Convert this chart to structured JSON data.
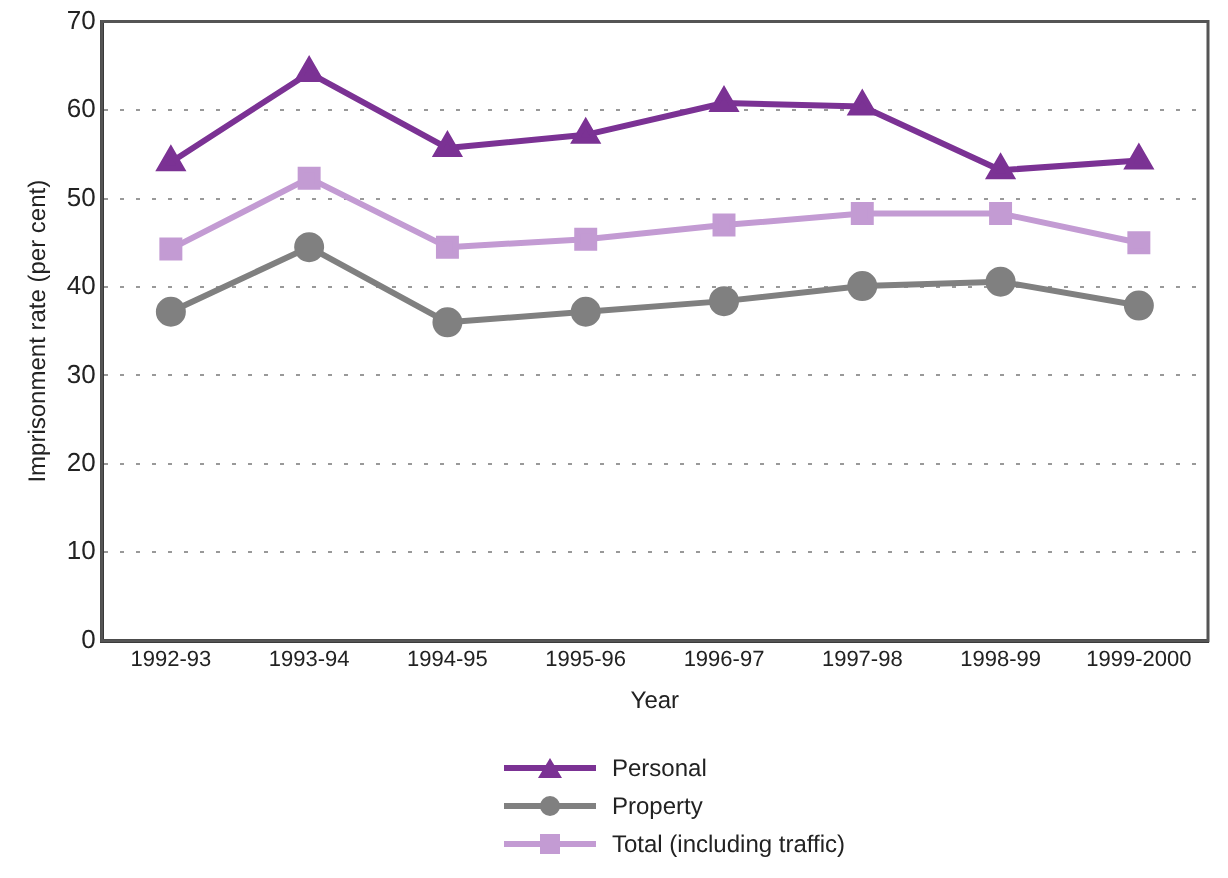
{
  "chart_data": {
    "type": "line",
    "xlabel": "Year",
    "ylabel": "Imprisonment rate (per cent)",
    "categories": [
      "1992-93",
      "1993-94",
      "1994-95",
      "1995-96",
      "1996-97",
      "1997-98",
      "1998-99",
      "1999-2000"
    ],
    "series": [
      {
        "name": "Personal",
        "color": "#7b3294",
        "marker": "triangle",
        "values": [
          54.1,
          64.2,
          55.7,
          57.2,
          60.8,
          60.4,
          53.2,
          54.3
        ]
      },
      {
        "name": "Property",
        "color": "#808080",
        "marker": "circle",
        "values": [
          37.2,
          44.5,
          36.0,
          37.2,
          38.4,
          40.1,
          40.6,
          37.9
        ]
      },
      {
        "name": "Total (including traffic)",
        "color": "#c39bd3",
        "marker": "square",
        "values": [
          44.3,
          52.3,
          44.5,
          45.4,
          47.0,
          48.3,
          48.3,
          45.0
        ]
      }
    ],
    "ylim": [
      0,
      70
    ],
    "yticks": [
      0,
      10,
      20,
      30,
      40,
      50,
      60,
      70
    ],
    "grid": "y",
    "legend": "bottom"
  }
}
